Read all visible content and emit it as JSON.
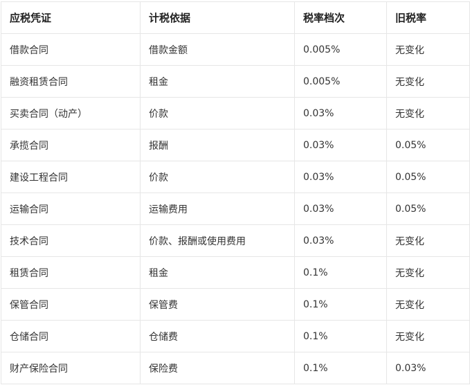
{
  "table": {
    "headers": [
      "应税凭证",
      "计税依据",
      "税率档次",
      "旧税率"
    ],
    "rows": [
      [
        "借款合同",
        "借款金额",
        "0.005%",
        "无变化"
      ],
      [
        "融资租赁合同",
        "租金",
        "0.005%",
        "无变化"
      ],
      [
        "买卖合同（动产）",
        "价款",
        "0.03%",
        "无变化"
      ],
      [
        "承揽合同",
        "报酬",
        "0.03%",
        "0.05%"
      ],
      [
        "建设工程合同",
        "价款",
        "0.03%",
        "0.05%"
      ],
      [
        "运输合同",
        "运输费用",
        "0.03%",
        "0.05%"
      ],
      [
        "技术合同",
        "价款、报酬或使用费用",
        "0.03%",
        "无变化"
      ],
      [
        "租赁合同",
        "租金",
        "0.1%",
        "无变化"
      ],
      [
        "保管合同",
        "保管费",
        "0.1%",
        "无变化"
      ],
      [
        "仓储合同",
        "仓储费",
        "0.1%",
        "无变化"
      ],
      [
        "财产保险合同",
        "保险费",
        "0.1%",
        "0.03%"
      ]
    ]
  }
}
